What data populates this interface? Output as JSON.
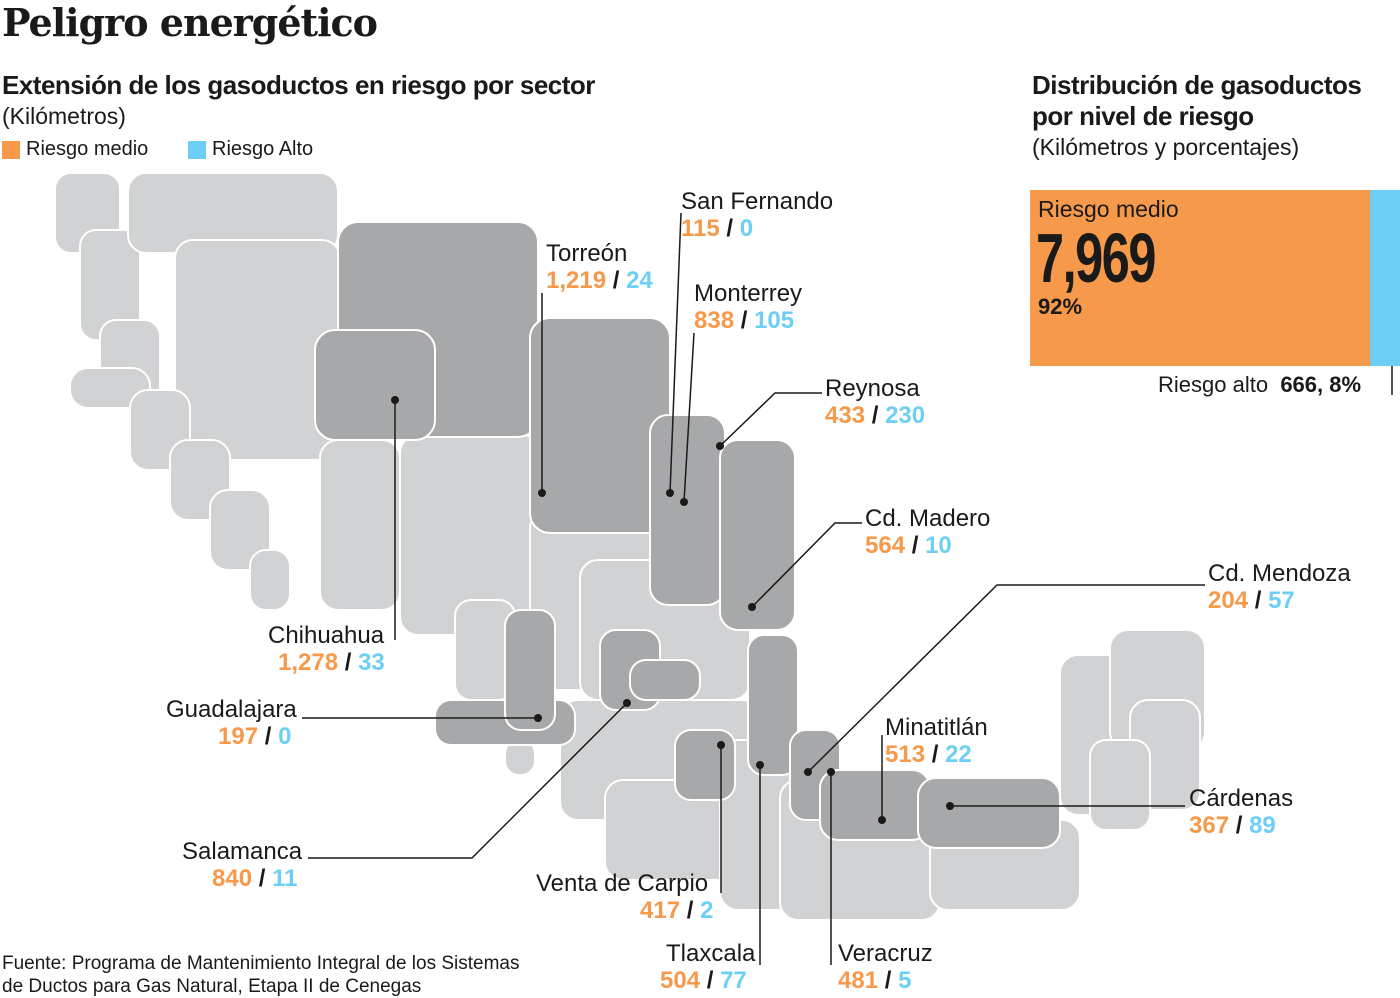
{
  "title": "Peligro energético",
  "left": {
    "subtitle": "Extensión de los gasoductos en riesgo por sector",
    "unit": "(Kilómetros)",
    "legend": [
      {
        "label": "Riesgo medio",
        "color": "#F7994A"
      },
      {
        "label": "Riesgo Alto",
        "color": "#6DCFF6"
      }
    ]
  },
  "right": {
    "subtitle_line1": "Distribución de gasoductos",
    "subtitle_line2": "por nivel de riesgo",
    "unit": "(Kilómetros y porcentajes)",
    "medio": {
      "label": "Riesgo medio",
      "value": "7,969",
      "pct": "92%",
      "share": 92
    },
    "alto": {
      "label": "Riesgo alto",
      "value": "666, 8%",
      "share": 8
    }
  },
  "sectors": [
    {
      "name": "San Fernando",
      "medio": "115",
      "alto": "0"
    },
    {
      "name": "Torreón",
      "medio": "1,219",
      "alto": "24"
    },
    {
      "name": "Monterrey",
      "medio": "838",
      "alto": "105"
    },
    {
      "name": "Reynosa",
      "medio": "433",
      "alto": "230"
    },
    {
      "name": "Cd. Madero",
      "medio": "564",
      "alto": "10"
    },
    {
      "name": "Cd. Mendoza",
      "medio": "204",
      "alto": "57"
    },
    {
      "name": "Minatitlán",
      "medio": "513",
      "alto": "22"
    },
    {
      "name": "Cárdenas",
      "medio": "367",
      "alto": "89"
    },
    {
      "name": "Chihuahua",
      "medio": "1,278",
      "alto": "33"
    },
    {
      "name": "Guadalajara",
      "medio": "197",
      "alto": "0"
    },
    {
      "name": "Salamanca",
      "medio": "840",
      "alto": "11"
    },
    {
      "name": "Venta de Carpio",
      "medio": "417",
      "alto": "2"
    },
    {
      "name": "Tlaxcala",
      "medio": "504",
      "alto": "77"
    },
    {
      "name": "Veracruz",
      "medio": "481",
      "alto": "5"
    }
  ],
  "slash": "/",
  "source_line1": "Fuente: Programa de Mantenimiento Integral de los Sistemas",
  "source_line2": "de Ductos para Gas Natural, Etapa II de Cenegas",
  "colors": {
    "medio": "#F7994A",
    "alto": "#6DCFF6",
    "light_gray": "#d1d2d3",
    "dark_gray": "#a7a8aa"
  }
}
